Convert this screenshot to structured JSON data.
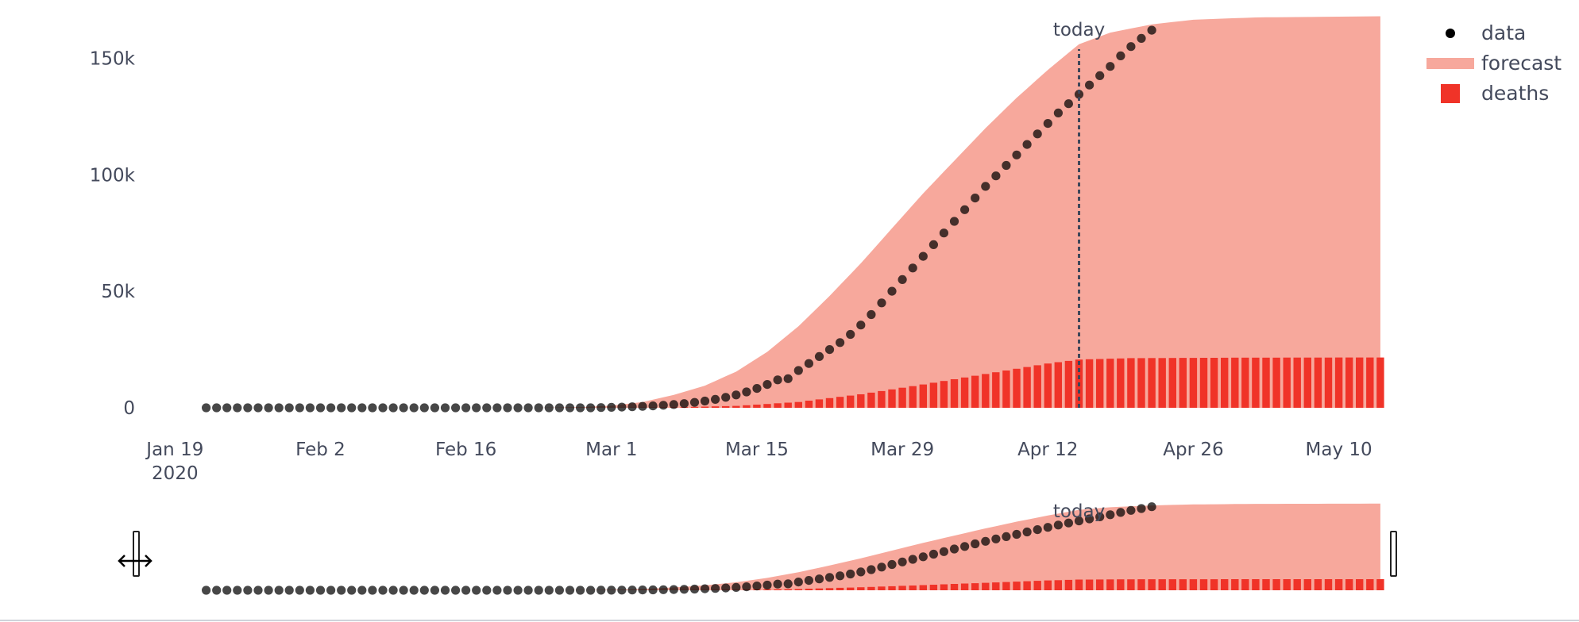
{
  "chart_data": {
    "type": "line",
    "x_start": "2020-01-22",
    "x_today": "2020-04-15",
    "x_end": "2020-05-14",
    "x_range": [
      "2020-01-15",
      "2020-05-15"
    ],
    "xticks": [
      {
        "date": "2020-01-19",
        "label": "Jan 19",
        "sublabel": "2020"
      },
      {
        "date": "2020-02-02",
        "label": "Feb 2"
      },
      {
        "date": "2020-02-16",
        "label": "Feb 16"
      },
      {
        "date": "2020-03-01",
        "label": "Mar 1"
      },
      {
        "date": "2020-03-15",
        "label": "Mar 15"
      },
      {
        "date": "2020-03-29",
        "label": "Mar 29"
      },
      {
        "date": "2020-04-12",
        "label": "Apr 12"
      },
      {
        "date": "2020-04-26",
        "label": "Apr 26"
      },
      {
        "date": "2020-05-10",
        "label": "May 10"
      }
    ],
    "ylim": [
      0,
      160000
    ],
    "yticks": [
      {
        "value": 0,
        "label": "0"
      },
      {
        "value": 50000,
        "label": "50k"
      },
      {
        "value": 100000,
        "label": "100k"
      },
      {
        "value": 150000,
        "label": "150k"
      }
    ],
    "grid": false,
    "legend_position": "top-right",
    "annotation": {
      "date": "2020-04-15",
      "text": "today"
    },
    "series": [
      {
        "name": "data",
        "type": "scatter",
        "color": "#000000",
        "values": [
          0,
          0,
          0,
          0,
          0,
          0,
          0,
          0,
          0,
          0,
          0,
          0,
          0,
          0,
          0,
          0,
          0,
          0,
          0,
          0,
          0,
          0,
          0,
          0,
          0,
          0,
          0,
          0,
          0,
          0,
          0,
          0,
          0,
          0,
          0,
          0,
          0,
          0,
          100,
          200,
          300,
          450,
          600,
          800,
          1100,
          1400,
          1800,
          2300,
          2900,
          3600,
          4500,
          5500,
          6800,
          8300,
          10000,
          12000,
          12500,
          16000,
          19000,
          22000,
          25000,
          28000,
          31500,
          35500,
          40000,
          45000,
          50000,
          55000,
          60000,
          65000,
          70000,
          75000,
          80000,
          85000,
          90000,
          95000,
          99500,
          104000,
          108500,
          113000,
          117500,
          122000,
          126500,
          130500,
          134500,
          138500,
          142500,
          146500,
          151000,
          155000,
          158500,
          162000
        ]
      },
      {
        "name": "forecast",
        "type": "area",
        "color": "#f7a89c",
        "points": [
          [
            "2020-02-23",
            0
          ],
          [
            "2020-02-27",
            300
          ],
          [
            "2020-03-01",
            900
          ],
          [
            "2020-03-04",
            2500
          ],
          [
            "2020-03-07",
            5500
          ],
          [
            "2020-03-10",
            9500
          ],
          [
            "2020-03-13",
            15500
          ],
          [
            "2020-03-16",
            24000
          ],
          [
            "2020-03-19",
            35000
          ],
          [
            "2020-03-22",
            48000
          ],
          [
            "2020-03-25",
            62000
          ],
          [
            "2020-03-28",
            77000
          ],
          [
            "2020-03-31",
            92000
          ],
          [
            "2020-04-03",
            106000
          ],
          [
            "2020-04-06",
            120000
          ],
          [
            "2020-04-09",
            133000
          ],
          [
            "2020-04-12",
            145000
          ],
          [
            "2020-04-15",
            156000
          ],
          [
            "2020-04-18",
            161000
          ],
          [
            "2020-04-22",
            164500
          ],
          [
            "2020-04-26",
            166500
          ],
          [
            "2020-05-02",
            167500
          ],
          [
            "2020-05-14",
            168000
          ]
        ]
      },
      {
        "name": "deaths",
        "type": "bar",
        "color": "#f03328",
        "start": "2020-03-01",
        "end": "2020-05-14",
        "points": [
          [
            "2020-03-01",
            0
          ],
          [
            "2020-03-07",
            200
          ],
          [
            "2020-03-13",
            800
          ],
          [
            "2020-03-19",
            2500
          ],
          [
            "2020-03-25",
            5800
          ],
          [
            "2020-03-31",
            10000
          ],
          [
            "2020-04-06",
            14500
          ],
          [
            "2020-04-12",
            19000
          ],
          [
            "2020-04-15",
            20700
          ],
          [
            "2020-04-20",
            21300
          ],
          [
            "2020-04-30",
            21500
          ],
          [
            "2020-05-14",
            21600
          ]
        ]
      }
    ]
  }
}
